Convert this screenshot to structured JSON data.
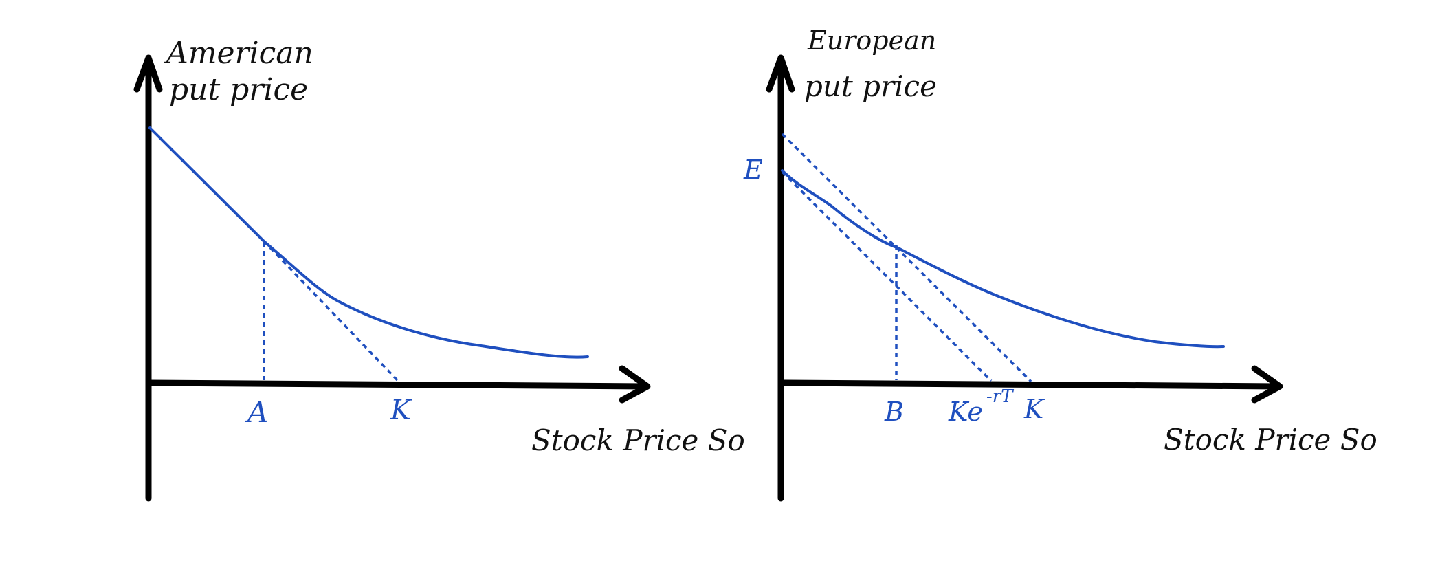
{
  "colors": {
    "axis": "#000000",
    "curve": "#1f4fbf",
    "text": "#111111"
  },
  "american_diagram": {
    "y_label_line1": "American",
    "y_label_line2": "put price",
    "x_axis_label": "Stock Price So",
    "x_marks": [
      "A",
      "K"
    ]
  },
  "european_diagram": {
    "y_label_line1": "European",
    "y_label_line2": "put price",
    "x_axis_label": "Stock Price So",
    "y_mark": "E",
    "x_marks": [
      "B",
      "Ke",
      "-rT",
      "K"
    ]
  }
}
